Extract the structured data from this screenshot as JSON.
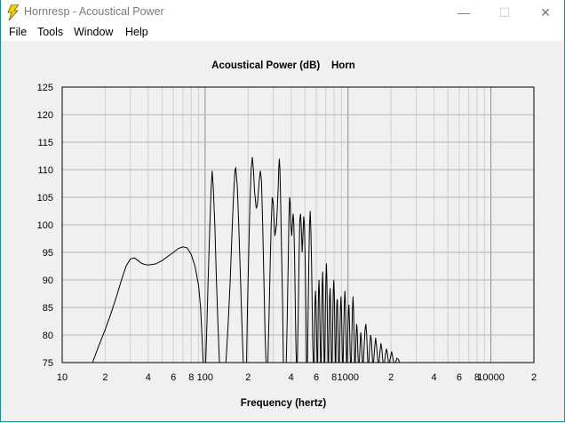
{
  "window": {
    "title": "Hornresp - Acoustical Power",
    "minimize_glyph": "—",
    "maximize_glyph": "☐",
    "close_glyph": "✕"
  },
  "menu": [
    "File",
    "Tools",
    "Window",
    "Help"
  ],
  "chart_data": {
    "type": "line",
    "title": "Acoustical Power (dB)    Horn",
    "xlabel": "Frequency (hertz)",
    "ylabel": "",
    "x_scale": "log",
    "xlim": [
      10,
      20000
    ],
    "ylim": [
      75,
      125
    ],
    "x_tick_labels": [
      {
        "value": 10,
        "label": "10"
      },
      {
        "value": 20,
        "label": "2"
      },
      {
        "value": 40,
        "label": "4"
      },
      {
        "value": 60,
        "label": "6"
      },
      {
        "value": 80,
        "label": "8"
      },
      {
        "value": 100,
        "label": "100"
      },
      {
        "value": 200,
        "label": "2"
      },
      {
        "value": 400,
        "label": "4"
      },
      {
        "value": 600,
        "label": "6"
      },
      {
        "value": 800,
        "label": "8"
      },
      {
        "value": 1000,
        "label": "1000"
      },
      {
        "value": 2000,
        "label": "2"
      },
      {
        "value": 4000,
        "label": "4"
      },
      {
        "value": 6000,
        "label": "6"
      },
      {
        "value": 8000,
        "label": "8"
      },
      {
        "value": 10000,
        "label": "10000"
      },
      {
        "value": 20000,
        "label": "2"
      }
    ],
    "y_ticks": [
      75,
      80,
      85,
      90,
      95,
      100,
      105,
      110,
      115,
      120,
      125
    ],
    "grid": true,
    "line_color": "#000000",
    "series": [
      {
        "values": [
          [
            16.3,
            75
          ],
          [
            18,
            78
          ],
          [
            20,
            81
          ],
          [
            22,
            84
          ],
          [
            24,
            87
          ],
          [
            26,
            90
          ],
          [
            28,
            92.5
          ],
          [
            30,
            93.8
          ],
          [
            32,
            94
          ],
          [
            34,
            93.5
          ],
          [
            36,
            93
          ],
          [
            38,
            92.8
          ],
          [
            40,
            92.7
          ],
          [
            45,
            92.9
          ],
          [
            50,
            93.5
          ],
          [
            55,
            94.3
          ],
          [
            60,
            95
          ],
          [
            65,
            95.7
          ],
          [
            70,
            96
          ],
          [
            75,
            95.8
          ],
          [
            80,
            94.6
          ],
          [
            85,
            92.5
          ],
          [
            90,
            89
          ],
          [
            93,
            85
          ],
          [
            95,
            80
          ],
          [
            97,
            75
          ],
          [
            101,
            75
          ],
          [
            103,
            82
          ],
          [
            105,
            90
          ],
          [
            108,
            100
          ],
          [
            110,
            106
          ],
          [
            112,
            109.8
          ],
          [
            114,
            107
          ],
          [
            117,
            100
          ],
          [
            120,
            90
          ],
          [
            123,
            82
          ],
          [
            126,
            75
          ],
          [
            140,
            75
          ],
          [
            145,
            82
          ],
          [
            150,
            90
          ],
          [
            154,
            98
          ],
          [
            158,
            105
          ],
          [
            162,
            110
          ],
          [
            164,
            110.3
          ],
          [
            168,
            107
          ],
          [
            172,
            100
          ],
          [
            177,
            90
          ],
          [
            181,
            82
          ],
          [
            185,
            75
          ],
          [
            195,
            75
          ],
          [
            198,
            85
          ],
          [
            202,
            95
          ],
          [
            206,
            104
          ],
          [
            210,
            110
          ],
          [
            214,
            112.3
          ],
          [
            218,
            110
          ],
          [
            222,
            106
          ],
          [
            228,
            103
          ],
          [
            232,
            103.5
          ],
          [
            236,
            106
          ],
          [
            240,
            108.5
          ],
          [
            244,
            109.8
          ],
          [
            248,
            108
          ],
          [
            253,
            100
          ],
          [
            258,
            90
          ],
          [
            263,
            80
          ],
          [
            267,
            75
          ],
          [
            275,
            75
          ],
          [
            280,
            83
          ],
          [
            285,
            92
          ],
          [
            290,
            100
          ],
          [
            295,
            105
          ],
          [
            300,
            104
          ],
          [
            305,
            100
          ],
          [
            308,
            98
          ],
          [
            312,
            99
          ],
          [
            316,
            100
          ],
          [
            320,
            103
          ],
          [
            325,
            107
          ],
          [
            328,
            110.5
          ],
          [
            331,
            112
          ],
          [
            334,
            110
          ],
          [
            338,
            104
          ],
          [
            343,
            95
          ],
          [
            349,
            85
          ],
          [
            353,
            75
          ],
          [
            370,
            75
          ],
          [
            375,
            82
          ],
          [
            381,
            92
          ],
          [
            386,
            101
          ],
          [
            390,
            105
          ],
          [
            394,
            104
          ],
          [
            398,
            100
          ],
          [
            404,
            98
          ],
          [
            410,
            101
          ],
          [
            414,
            102
          ],
          [
            418,
            100
          ],
          [
            423,
            94
          ],
          [
            428,
            85
          ],
          [
            433,
            77
          ],
          [
            436,
            75
          ],
          [
            442,
            75
          ],
          [
            448,
            83
          ],
          [
            454,
            93
          ],
          [
            460,
            101
          ],
          [
            466,
            102
          ],
          [
            472,
            99
          ],
          [
            478,
            95
          ],
          [
            484,
            98
          ],
          [
            490,
            101.5
          ],
          [
            496,
            100
          ],
          [
            502,
            93
          ],
          [
            508,
            84
          ],
          [
            513,
            75
          ],
          [
            520,
            75
          ],
          [
            526,
            84
          ],
          [
            532,
            93
          ],
          [
            538,
            100
          ],
          [
            544,
            102.5
          ],
          [
            550,
            99
          ],
          [
            556,
            93
          ],
          [
            562,
            85
          ],
          [
            567,
            78
          ],
          [
            572,
            75
          ],
          [
            580,
            75
          ],
          [
            584,
            82
          ],
          [
            588,
            86
          ],
          [
            592,
            88
          ],
          [
            597,
            86
          ],
          [
            603,
            80
          ],
          [
            608,
            75
          ],
          [
            614,
            75
          ],
          [
            618,
            83
          ],
          [
            622,
            88
          ],
          [
            627,
            90
          ],
          [
            632,
            87
          ],
          [
            638,
            80
          ],
          [
            643,
            75
          ],
          [
            650,
            75
          ],
          [
            655,
            83
          ],
          [
            660,
            89
          ],
          [
            665,
            91.5
          ],
          [
            670,
            88
          ],
          [
            676,
            80
          ],
          [
            681,
            75
          ],
          [
            688,
            75
          ],
          [
            694,
            84
          ],
          [
            700,
            90
          ],
          [
            706,
            93
          ],
          [
            712,
            90
          ],
          [
            718,
            82
          ],
          [
            724,
            75
          ],
          [
            732,
            75
          ],
          [
            738,
            82
          ],
          [
            744,
            87
          ],
          [
            750,
            88.5
          ],
          [
            756,
            85
          ],
          [
            762,
            78
          ],
          [
            766,
            75
          ],
          [
            775,
            75
          ],
          [
            782,
            82
          ],
          [
            789,
            88
          ],
          [
            796,
            90
          ],
          [
            803,
            87
          ],
          [
            810,
            80
          ],
          [
            815,
            75
          ],
          [
            822,
            75
          ],
          [
            829,
            82
          ],
          [
            836,
            86
          ],
          [
            843,
            86.5
          ],
          [
            850,
            82
          ],
          [
            857,
            76
          ],
          [
            860,
            75
          ],
          [
            870,
            75
          ],
          [
            878,
            80
          ],
          [
            886,
            85
          ],
          [
            894,
            87
          ],
          [
            902,
            84
          ],
          [
            910,
            78
          ],
          [
            915,
            75
          ],
          [
            925,
            75
          ],
          [
            934,
            81
          ],
          [
            943,
            86
          ],
          [
            952,
            88
          ],
          [
            961,
            85
          ],
          [
            970,
            79
          ],
          [
            976,
            75
          ],
          [
            985,
            75
          ],
          [
            995,
            80
          ],
          [
            1005,
            84
          ],
          [
            1015,
            85.5
          ],
          [
            1025,
            82
          ],
          [
            1035,
            77
          ],
          [
            1040,
            75
          ],
          [
            1055,
            75
          ],
          [
            1065,
            80
          ],
          [
            1075,
            85
          ],
          [
            1085,
            87
          ],
          [
            1095,
            84
          ],
          [
            1105,
            79
          ],
          [
            1112,
            75
          ],
          [
            1125,
            75
          ],
          [
            1137,
            79
          ],
          [
            1149,
            82
          ],
          [
            1160,
            81
          ],
          [
            1172,
            77
          ],
          [
            1180,
            75
          ],
          [
            1200,
            75
          ],
          [
            1214,
            78
          ],
          [
            1228,
            80.5
          ],
          [
            1242,
            79
          ],
          [
            1256,
            76
          ],
          [
            1262,
            75
          ],
          [
            1280,
            75
          ],
          [
            1298,
            78
          ],
          [
            1316,
            81
          ],
          [
            1334,
            82
          ],
          [
            1352,
            80
          ],
          [
            1370,
            76
          ],
          [
            1376,
            75
          ],
          [
            1400,
            75
          ],
          [
            1420,
            78
          ],
          [
            1440,
            80
          ],
          [
            1460,
            79
          ],
          [
            1480,
            76
          ],
          [
            1486,
            75
          ],
          [
            1510,
            75
          ],
          [
            1535,
            77.5
          ],
          [
            1560,
            79.5
          ],
          [
            1585,
            78
          ],
          [
            1610,
            76
          ],
          [
            1620,
            75
          ],
          [
            1650,
            75
          ],
          [
            1675,
            77
          ],
          [
            1700,
            78.5
          ],
          [
            1725,
            77.5
          ],
          [
            1750,
            75.5
          ],
          [
            1760,
            75
          ],
          [
            1800,
            75
          ],
          [
            1830,
            76.5
          ],
          [
            1860,
            77.5
          ],
          [
            1890,
            76.5
          ],
          [
            1920,
            75
          ],
          [
            1950,
            75
          ],
          [
            1985,
            76
          ],
          [
            2020,
            77
          ],
          [
            2055,
            76
          ],
          [
            2090,
            75
          ],
          [
            2150,
            75
          ],
          [
            2200,
            75.8
          ],
          [
            2250,
            75.6
          ],
          [
            2300,
            75
          ]
        ]
      }
    ]
  }
}
